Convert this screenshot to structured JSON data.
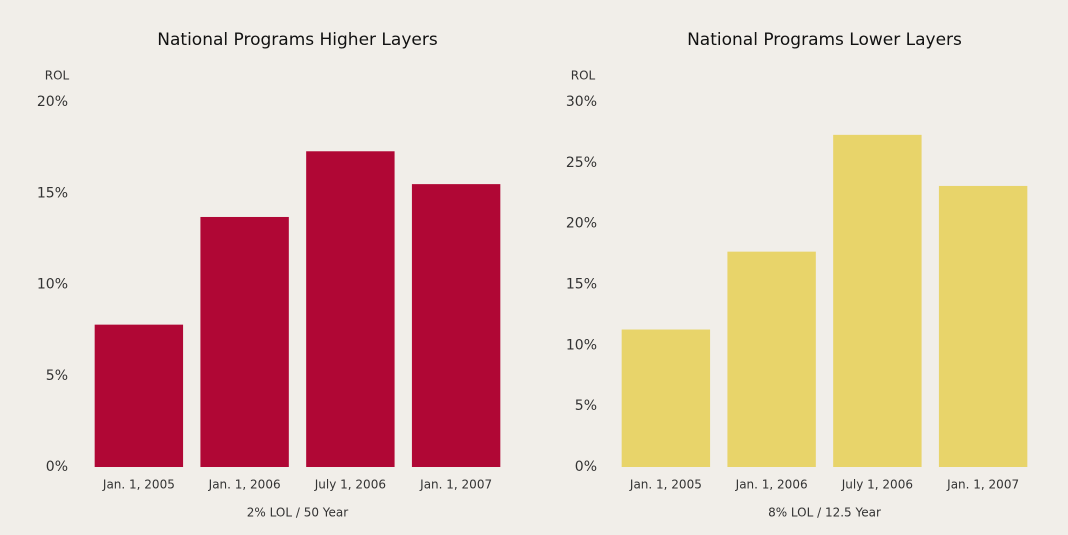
{
  "chart_data": [
    {
      "type": "bar",
      "title": "National Programs Higher Layers",
      "y_label": "ROL",
      "x_label": "2% LOL / 50 Year",
      "categories": [
        "Jan. 1, 2005",
        "Jan. 1, 2006",
        "July 1, 2006",
        "Jan. 1, 2007"
      ],
      "values": [
        7.8,
        13.7,
        17.3,
        15.5
      ],
      "color": "#b00735",
      "ylim": [
        0,
        20
      ],
      "yticks": [
        {
          "value": 0,
          "label": "0%"
        },
        {
          "value": 5,
          "label": "5%"
        },
        {
          "value": 10,
          "label": "10%"
        },
        {
          "value": 15,
          "label": "15%"
        },
        {
          "value": 20,
          "label": "20%"
        }
      ],
      "grid": false
    },
    {
      "type": "bar",
      "title": "National Programs Lower Layers",
      "y_label": "ROL",
      "x_label": "8% LOL / 12.5 Year",
      "categories": [
        "Jan. 1, 2005",
        "Jan. 1, 2006",
        "July 1, 2006",
        "Jan. 1, 2007"
      ],
      "values": [
        11.3,
        17.7,
        27.3,
        23.1
      ],
      "color": "#e8d46a",
      "ylim": [
        0,
        30
      ],
      "yticks": [
        {
          "value": 0,
          "label": "0%"
        },
        {
          "value": 5,
          "label": "5%"
        },
        {
          "value": 10,
          "label": "10%"
        },
        {
          "value": 15,
          "label": "15%"
        },
        {
          "value": 20,
          "label": "20%"
        },
        {
          "value": 25,
          "label": "25%"
        },
        {
          "value": 30,
          "label": "30%"
        }
      ],
      "grid": false
    }
  ]
}
